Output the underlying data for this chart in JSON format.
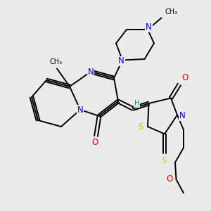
{
  "background_color": "#ebebeb",
  "atom_colors": {
    "C": "#000000",
    "N": "#0000ee",
    "O": "#ee0000",
    "S": "#cccc00",
    "H": "#008888"
  },
  "bond_color": "#000000",
  "bond_width": 1.4,
  "font_size_atom": 8.5,
  "font_size_small": 7.0,
  "fig_width": 3.0,
  "fig_height": 3.0,
  "dpi": 100
}
